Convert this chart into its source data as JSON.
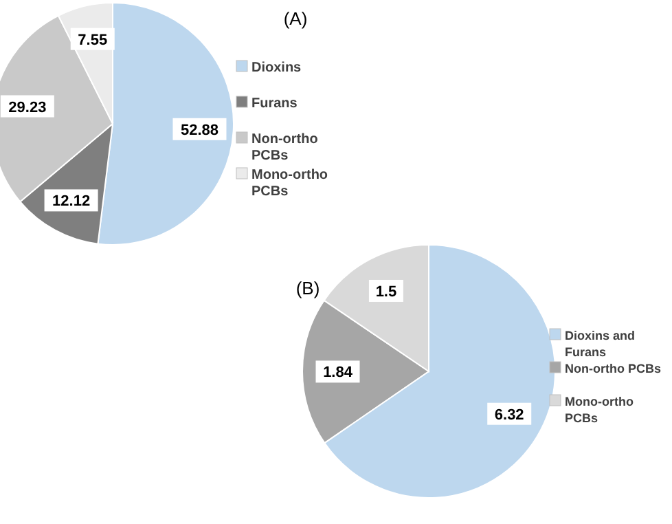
{
  "chart_data": [
    {
      "type": "pie",
      "title": "(A)",
      "categories": [
        "Dioxins",
        "Furans",
        "Non-ortho PCBs",
        "Mono-ortho PCBs"
      ],
      "values": [
        52.88,
        12.12,
        29.23,
        7.55
      ],
      "colors": [
        "#bdd7ee",
        "#7f7f7f",
        "#c9c9c9",
        "#ebebeb"
      ],
      "data_labels": true,
      "legend": "right"
    },
    {
      "type": "pie",
      "title": "(B)",
      "categories": [
        "Dioxins and Furans",
        "Non-ortho PCBs",
        "Mono-ortho PCBs"
      ],
      "values": [
        6.32,
        1.84,
        1.5
      ],
      "colors": [
        "#bdd7ee",
        "#a6a6a6",
        "#d9d9d9"
      ],
      "data_labels": true,
      "legend": "right"
    }
  ]
}
